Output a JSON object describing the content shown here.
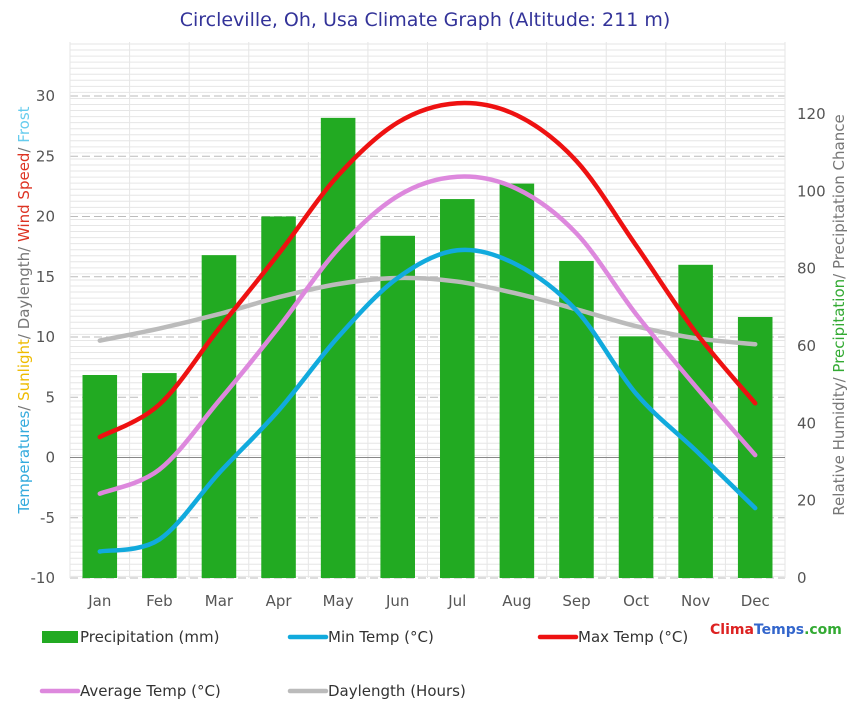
{
  "chart_data": {
    "type": "bar+line",
    "title": "Circleville, Oh, Usa Climate Graph (Altitude: 211 m)",
    "categories": [
      "Jan",
      "Feb",
      "Mar",
      "Apr",
      "May",
      "Jun",
      "Jul",
      "Aug",
      "Sep",
      "Oct",
      "Nov",
      "Dec"
    ],
    "left_axis": {
      "range": [
        -10,
        35
      ],
      "ticks": [
        -10,
        -5,
        0,
        5,
        10,
        15,
        20,
        25,
        30
      ],
      "label_parts": [
        {
          "text": "Temperatures",
          "color": "#33aadd"
        },
        {
          "text": "/ ",
          "color": "#777777"
        },
        {
          "text": "Sunlight",
          "color": "#eebb00"
        },
        {
          "text": "/ Daylength/ ",
          "color": "#777777"
        },
        {
          "text": "Wind Speed",
          "color": "#dd3322"
        },
        {
          "text": "/ ",
          "color": "#777777"
        },
        {
          "text": "Frost",
          "color": "#66ccee"
        }
      ]
    },
    "right_axis": {
      "range": [
        0,
        140
      ],
      "ticks": [
        0,
        20,
        40,
        60,
        80,
        100,
        120
      ],
      "label_parts": [
        {
          "text": "Relative Humidity/ ",
          "color": "#777777"
        },
        {
          "text": "Precipitation",
          "color": "#33aa33"
        },
        {
          "text": "/ Precipitation Chance",
          "color": "#777777"
        }
      ]
    },
    "bars": {
      "name": "Precipitation (mm)",
      "axis": "right",
      "color": "#22aa22",
      "values": [
        52.5,
        53,
        83.5,
        93.5,
        119,
        88.5,
        98,
        102,
        82,
        62.5,
        81,
        67.5
      ]
    },
    "series": [
      {
        "name": "Daylength (Hours)",
        "color": "#bbbbbb",
        "values": [
          9.7,
          10.7,
          11.9,
          13.3,
          14.4,
          14.9,
          14.6,
          13.6,
          12.3,
          10.9,
          9.9,
          9.4
        ]
      },
      {
        "name": "Average Temp (°C)",
        "color": "#dd88dd",
        "values": [
          -3.0,
          -1.0,
          4.7,
          10.8,
          17.3,
          21.7,
          23.3,
          22.3,
          18.6,
          11.9,
          5.9,
          0.2
        ]
      },
      {
        "name": "Min Temp (°C)",
        "color": "#11aadd",
        "values": [
          -7.8,
          -6.8,
          -1.3,
          3.9,
          10.0,
          14.9,
          17.2,
          16.0,
          12.2,
          5.3,
          0.6,
          -4.2
        ]
      },
      {
        "name": "Max Temp (°C)",
        "color": "#ee1111",
        "values": [
          1.7,
          4.4,
          10.7,
          16.9,
          23.4,
          27.8,
          29.4,
          28.4,
          24.6,
          17.6,
          10.4,
          4.5
        ]
      }
    ],
    "legend": [
      {
        "label": "Precipitation (mm)",
        "kind": "bar",
        "color": "#22aa22"
      },
      {
        "label": "Min Temp (°C)",
        "kind": "line",
        "color": "#11aadd"
      },
      {
        "label": "Max Temp (°C)",
        "kind": "line",
        "color": "#ee1111"
      },
      {
        "label": "Average Temp (°C)",
        "kind": "line",
        "color": "#dd88dd"
      },
      {
        "label": "Daylength (Hours)",
        "kind": "line",
        "color": "#bbbbbb"
      }
    ],
    "legend_placement": "bottom",
    "grid": true
  },
  "brand": {
    "parts": [
      {
        "text": "Clima",
        "color": "#dd2222"
      },
      {
        "text": "Temps",
        "color": "#3366cc"
      },
      {
        "text": ".com",
        "color": "#33aa33"
      }
    ]
  }
}
